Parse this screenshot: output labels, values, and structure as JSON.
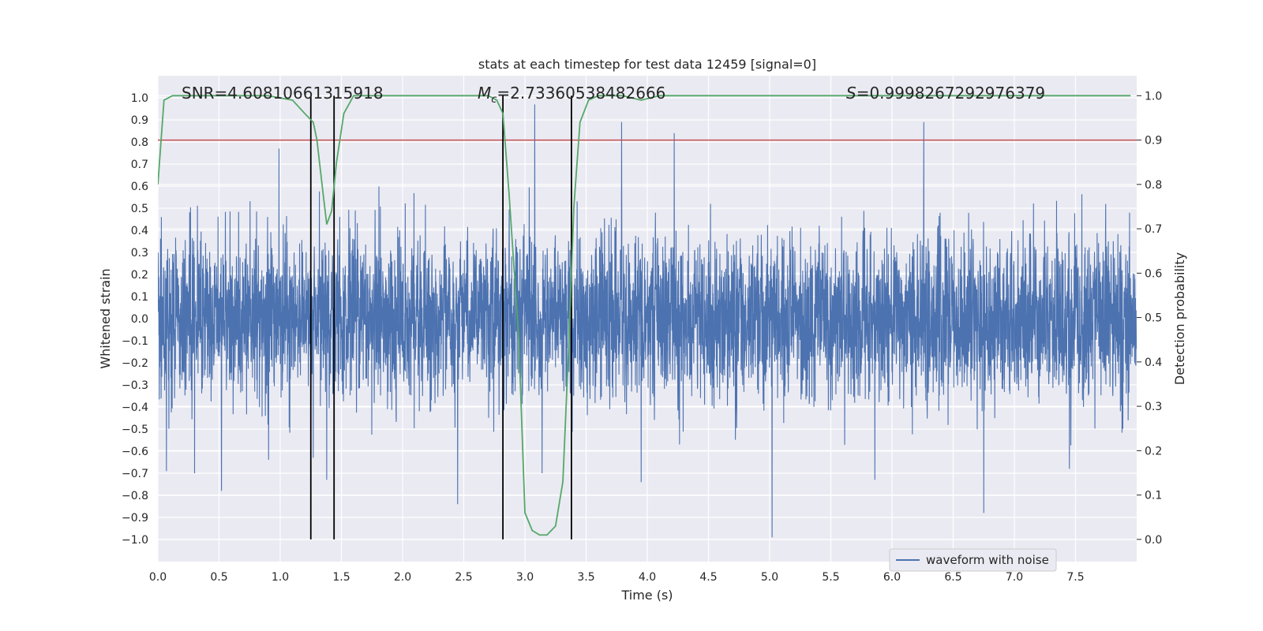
{
  "chart_data": {
    "type": "line",
    "title": "stats at each timestep for test data 12459 [signal=0]",
    "xlabel": "Time (s)",
    "ylabel": "Whitened strain",
    "y2label": "Detection probability",
    "xlim": [
      0.0,
      8.0
    ],
    "ylim": [
      -1.1,
      1.1
    ],
    "y2lim": [
      -0.05,
      1.045
    ],
    "x_ticks": [
      0.0,
      0.5,
      1.0,
      1.5,
      2.0,
      2.5,
      3.0,
      3.5,
      4.0,
      4.5,
      5.0,
      5.5,
      6.0,
      6.5,
      7.0,
      7.5
    ],
    "x_tick_labels": [
      "0.0",
      "0.5",
      "1.0",
      "1.5",
      "2.0",
      "2.5",
      "3.0",
      "3.5",
      "4.0",
      "4.5",
      "5.0",
      "5.5",
      "6.0",
      "6.5",
      "7.0",
      "7.5"
    ],
    "y_ticks": [
      1.0,
      0.9,
      0.8,
      0.7,
      0.6,
      0.5,
      0.4,
      0.3,
      0.2,
      0.1,
      0.0,
      -0.1,
      -0.2,
      -0.3,
      -0.4,
      -0.5,
      -0.6,
      -0.7,
      -0.8,
      -0.9,
      -1.0
    ],
    "y_tick_labels": [
      "1.0",
      "0.9",
      "0.8",
      "0.7",
      "0.6",
      "0.5",
      "0.4",
      "0.3",
      "0.2",
      "0.1",
      "0.0",
      "−0.1",
      "−0.2",
      "−0.3",
      "−0.4",
      "−0.5",
      "−0.6",
      "−0.7",
      "−0.8",
      "−0.9",
      "−1.0"
    ],
    "y2_ticks": [
      1.0,
      0.9,
      0.8,
      0.7,
      0.6,
      0.5,
      0.4,
      0.3,
      0.2,
      0.1,
      0.0
    ],
    "y2_tick_labels": [
      "1.0",
      "0.9",
      "0.8",
      "0.7",
      "0.6",
      "0.5",
      "0.4",
      "0.3",
      "0.2",
      "0.1",
      "0.0"
    ],
    "annotations": {
      "snr": "SNR=4.60810661315918",
      "mc_symbol": "M",
      "mc_sub": "c",
      "mc_value": "=2.73360538482666",
      "s_symbol": "S",
      "s_value": "=0.9998267292976379"
    },
    "legend": {
      "label": "waveform with noise",
      "placement": "lower-right"
    },
    "threshold": {
      "axis": "y2",
      "value": 0.9,
      "color": "#c44e52"
    },
    "vertical_lines": [
      1.25,
      1.44,
      2.82,
      3.38
    ],
    "waveform": {
      "name": "waveform with noise",
      "color": "#4c72b0",
      "duration": 8.0,
      "typical_amplitude": 0.45,
      "peaks": [
        {
          "x": 0.07,
          "y": -0.69
        },
        {
          "x": 0.3,
          "y": -0.7
        },
        {
          "x": 0.52,
          "y": -0.78
        },
        {
          "x": 0.99,
          "y": 0.77
        },
        {
          "x": 1.27,
          "y": -0.63
        },
        {
          "x": 1.38,
          "y": -0.73
        },
        {
          "x": 2.45,
          "y": -0.84
        },
        {
          "x": 3.08,
          "y": 0.97
        },
        {
          "x": 3.14,
          "y": -0.7
        },
        {
          "x": 3.79,
          "y": 0.89
        },
        {
          "x": 3.95,
          "y": -0.74
        },
        {
          "x": 4.22,
          "y": 0.84
        },
        {
          "x": 5.02,
          "y": -0.99
        },
        {
          "x": 5.86,
          "y": -0.73
        },
        {
          "x": 6.26,
          "y": 0.89
        },
        {
          "x": 6.75,
          "y": -0.88
        },
        {
          "x": 7.45,
          "y": -0.68
        }
      ]
    },
    "series": [
      {
        "name": "detection probability",
        "axis": "y2",
        "color": "#55a868",
        "x": [
          0.0,
          0.05,
          0.12,
          0.3,
          0.6,
          0.9,
          1.1,
          1.2,
          1.27,
          1.3,
          1.35,
          1.38,
          1.42,
          1.46,
          1.52,
          1.6,
          1.9,
          2.2,
          2.5,
          2.7,
          2.77,
          2.82,
          2.87,
          2.95,
          3.0,
          3.06,
          3.12,
          3.18,
          3.25,
          3.31,
          3.36,
          3.4,
          3.45,
          3.52,
          3.6,
          3.8,
          3.95,
          4.1,
          4.5,
          5.0,
          5.5,
          6.0,
          6.5,
          7.0,
          7.5,
          7.95
        ],
        "values": [
          0.8,
          0.99,
          1.0,
          1.0,
          1.0,
          1.0,
          0.99,
          0.96,
          0.94,
          0.9,
          0.78,
          0.71,
          0.74,
          0.85,
          0.96,
          1.0,
          1.0,
          1.0,
          1.0,
          1.0,
          0.99,
          0.96,
          0.78,
          0.45,
          0.06,
          0.02,
          0.01,
          0.01,
          0.03,
          0.13,
          0.45,
          0.75,
          0.94,
          0.99,
          1.0,
          1.0,
          0.99,
          1.0,
          1.0,
          1.0,
          1.0,
          1.0,
          1.0,
          1.0,
          1.0,
          1.0
        ]
      }
    ]
  }
}
